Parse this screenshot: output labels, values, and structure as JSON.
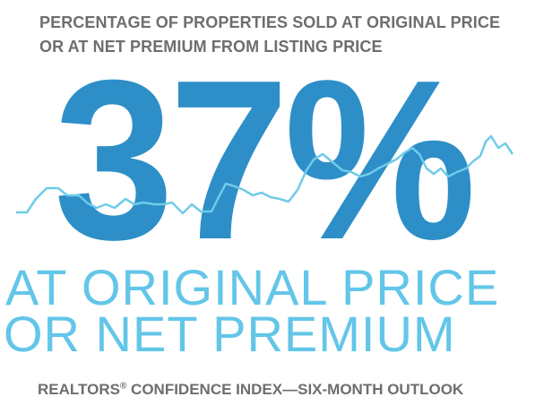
{
  "title_line1": "PERCENTAGE OF PROPERTIES SOLD AT ORIGINAL PRICE",
  "title_line2": "OR AT NET PREMIUM FROM LISTING PRICE",
  "big_value": "37%",
  "subtitle_line1": "AT ORIGINAL PRICE",
  "subtitle_line2": "OR NET PREMIUM",
  "footer_prefix": "REALTORS",
  "footer_mark": "®",
  "footer_suffix": " CONFIDENCE INDEX—SIX-MONTH OUTLOOK",
  "colors": {
    "title": "#6d6e71",
    "big_value": "#2e8fc8",
    "subtitle": "#63c6e8",
    "trend_line": "#6fcbe9"
  }
}
